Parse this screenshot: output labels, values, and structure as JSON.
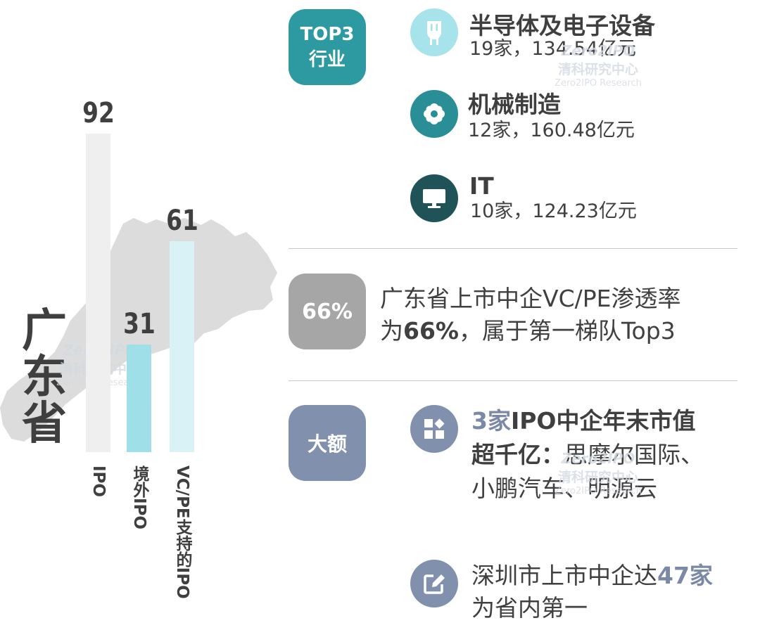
{
  "province": {
    "title_chars": [
      "广",
      "东",
      "省"
    ]
  },
  "bars": [
    {
      "label": "IPO",
      "value": 92,
      "color": "#efefef"
    },
    {
      "label": "境外IPO",
      "value": 31,
      "color": "#9fe0e8"
    },
    {
      "label": "VC/PE支持的IPO",
      "value": 61,
      "color": "#d9f2f5"
    }
  ],
  "top3": {
    "badge_lines": [
      "TOP3",
      "行业"
    ],
    "badge_color": "#2c9aa0",
    "industries": [
      {
        "name": "半导体及电子设备",
        "detail": "19家，134.54亿元",
        "icon": "chip-icon",
        "color": "#a7e3ea"
      },
      {
        "name": "机械制造",
        "detail": "12家，160.48亿元",
        "icon": "gear-icon",
        "color": "#2a8e96"
      },
      {
        "name": "IT",
        "detail": "10家，124.23亿元",
        "icon": "monitor-icon",
        "color": "#1f5357"
      }
    ]
  },
  "penetration": {
    "badge": "66%",
    "badge_color": "#a6a6a6",
    "line1": "广东省上市中企VC/PE渗透率",
    "line2_prefix": "为",
    "line2_bold": "66%",
    "line2_suffix": "，属于第一梯队Top3"
  },
  "large": {
    "badge": "大额",
    "badge_color": "#8190ad",
    "item1": {
      "icon": "apps-icon",
      "accent": "3家",
      "bold1": "IPO中企年末市值",
      "bold2": "超千亿：",
      "rest2": "思摩尔国际、",
      "line3": "小鹏汽车、明源云"
    },
    "item2": {
      "icon": "edit-icon",
      "line1_prefix": "深圳市上市中企达",
      "line1_accent": "47家",
      "line2": "为省内第一"
    }
  },
  "watermark": {
    "logo": "Zero2IPO",
    "cn": "清科研究中心",
    "en": "Zero2IPO Research"
  }
}
